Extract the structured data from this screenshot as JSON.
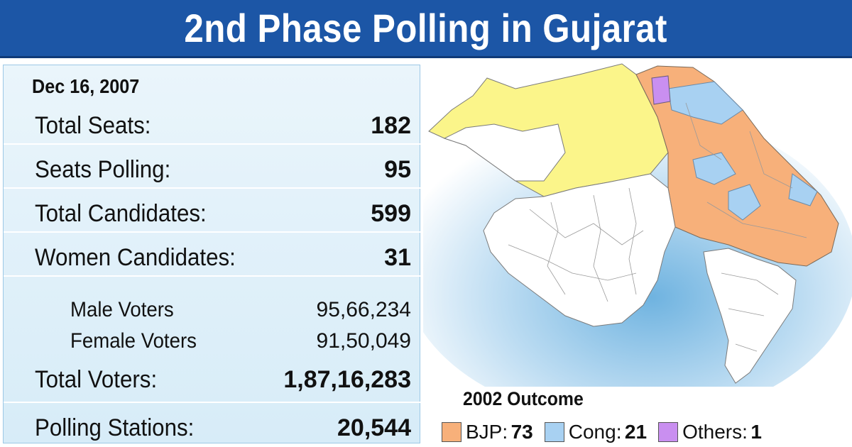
{
  "header": {
    "title": "2nd Phase Polling in Gujarat"
  },
  "stats": {
    "date": "Dec 16, 2007",
    "rows": [
      {
        "label": "Total Seats:",
        "value": "182"
      },
      {
        "label": "Seats Polling:",
        "value": "95"
      },
      {
        "label": "Total Candidates:",
        "value": "599"
      },
      {
        "label": "Women Candidates:",
        "value": "31"
      }
    ],
    "voters": [
      {
        "label": "Male Voters",
        "value": "95,66,234"
      },
      {
        "label": "Female Voters",
        "value": "91,50,049"
      }
    ],
    "total_voters": {
      "label": "Total Voters:",
      "value": "1,87,16,283"
    },
    "polling_stations": {
      "label": "Polling Stations:",
      "value": "20,544"
    }
  },
  "legend": {
    "title": "2002 Outcome",
    "items": [
      {
        "label": "BJP:",
        "value": "73",
        "color": "#f7b07a"
      },
      {
        "label": "Cong:",
        "value": "21",
        "color": "#a8d1f2"
      },
      {
        "label": "Others:",
        "value": "1",
        "color": "#c98ff0"
      }
    ]
  },
  "colors": {
    "header_bg": "#1c56a6",
    "panel_bg": "#dcedf8",
    "map_yellow": "#fbf58a",
    "map_white": "#ffffff",
    "sea_glow": "#5aa6d9"
  }
}
